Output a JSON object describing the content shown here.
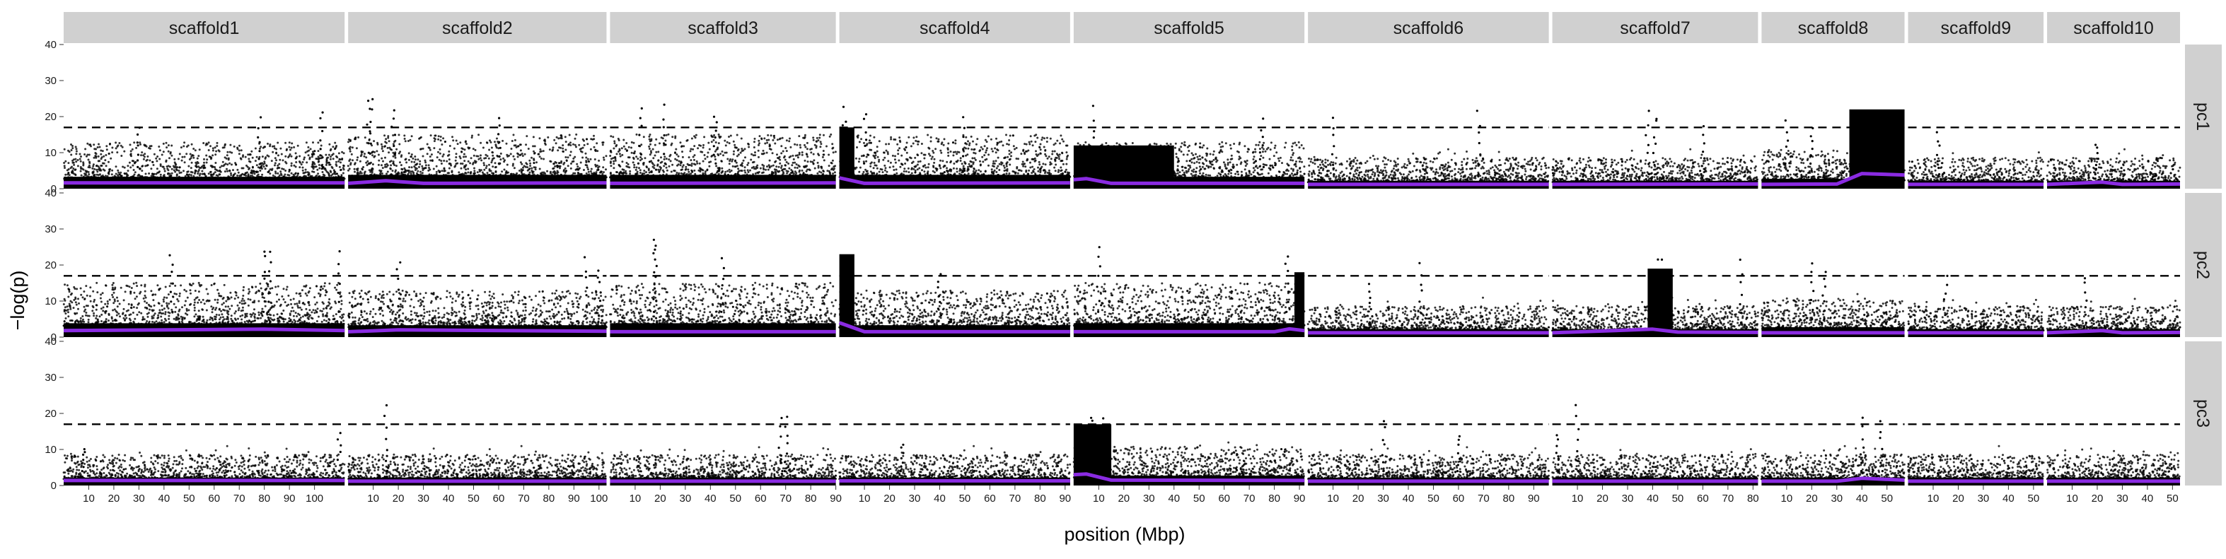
{
  "chart_data": {
    "type": "scatter",
    "subtype": "faceted manhattan plot",
    "xlabel": "position (Mbp)",
    "ylabel": "−log(p)",
    "ylim": [
      0,
      40
    ],
    "y_ticks": [
      0,
      10,
      20,
      30,
      40
    ],
    "grid": false,
    "threshold": 17,
    "threshold_style": "dashed",
    "colors": {
      "points": "#000000",
      "trend": "#8a2be2",
      "strip_bg": "#d0d0d0",
      "threshold": "#000000"
    },
    "columns": [
      {
        "name": "scaffold1",
        "length_mbp": 112,
        "x_ticks": [
          10,
          20,
          30,
          40,
          50,
          60,
          70,
          80,
          90,
          100
        ]
      },
      {
        "name": "scaffold2",
        "length_mbp": 103,
        "x_ticks": [
          10,
          20,
          30,
          40,
          50,
          60,
          70,
          80,
          90,
          100
        ]
      },
      {
        "name": "scaffold3",
        "length_mbp": 90,
        "x_ticks": [
          10,
          20,
          30,
          40,
          50,
          60,
          70,
          80,
          90
        ]
      },
      {
        "name": "scaffold4",
        "length_mbp": 92,
        "x_ticks": [
          10,
          20,
          30,
          40,
          50,
          60,
          70,
          80,
          90
        ]
      },
      {
        "name": "scaffold5",
        "length_mbp": 92,
        "x_ticks": [
          10,
          20,
          30,
          40,
          50,
          60,
          70,
          80,
          90
        ]
      },
      {
        "name": "scaffold6",
        "length_mbp": 96,
        "x_ticks": [
          10,
          20,
          30,
          40,
          50,
          60,
          70,
          80,
          90
        ]
      },
      {
        "name": "scaffold7",
        "length_mbp": 82,
        "x_ticks": [
          10,
          20,
          30,
          40,
          50,
          60,
          70,
          80
        ]
      },
      {
        "name": "scaffold8",
        "length_mbp": 57,
        "x_ticks": [
          10,
          20,
          30,
          40,
          50
        ]
      },
      {
        "name": "scaffold9",
        "length_mbp": 54,
        "x_ticks": [
          10,
          20,
          30,
          40,
          50
        ]
      },
      {
        "name": "scaffold10",
        "length_mbp": 53,
        "x_ticks": [
          10,
          20,
          30,
          40,
          50
        ]
      }
    ],
    "rows": [
      {
        "name": "pc1",
        "panels": [
          {
            "base": 6,
            "trend": [
              [
                0,
                1.6
              ],
              [
                112,
                1.6
              ]
            ],
            "peaks": [
              [
                78,
                20
              ],
              [
                103,
                23
              ],
              [
                30,
                18
              ]
            ],
            "dense": []
          },
          {
            "base": 7,
            "trend": [
              [
                0,
                1.5
              ],
              [
                15,
                2.2
              ],
              [
                30,
                1.5
              ],
              [
                103,
                1.6
              ]
            ],
            "peaks": [
              [
                8,
                26
              ],
              [
                9,
                25
              ],
              [
                18,
                24
              ],
              [
                60,
                20
              ]
            ],
            "dense": []
          },
          {
            "base": 7,
            "trend": [
              [
                0,
                1.5
              ],
              [
                90,
                1.6
              ]
            ],
            "peaks": [
              [
                12,
                23
              ],
              [
                22,
                24
              ],
              [
                42,
                22
              ]
            ],
            "dense": []
          },
          {
            "base": 7,
            "trend": [
              [
                0,
                3.0
              ],
              [
                10,
                1.5
              ],
              [
                92,
                1.6
              ]
            ],
            "peaks": [
              [
                2,
                23
              ],
              [
                10,
                22
              ],
              [
                50,
                20
              ]
            ],
            "dense": [
              [
                0,
                6,
                17
              ]
            ]
          },
          {
            "base": 6,
            "trend": [
              [
                0,
                2.5
              ],
              [
                5,
                2.8
              ],
              [
                15,
                1.5
              ],
              [
                92,
                1.5
              ]
            ],
            "peaks": [
              [
                8,
                23
              ],
              [
                75,
                20
              ]
            ],
            "dense": [
              [
                0,
                40,
                12
              ]
            ]
          },
          {
            "base": 4,
            "trend": [
              [
                0,
                1.2
              ],
              [
                96,
                1.2
              ]
            ],
            "peaks": [
              [
                10,
                21
              ],
              [
                68,
                22
              ]
            ],
            "dense": []
          },
          {
            "base": 4,
            "trend": [
              [
                0,
                1.2
              ],
              [
                82,
                1.3
              ]
            ],
            "peaks": [
              [
                38,
                23
              ],
              [
                41,
                22
              ],
              [
                60,
                18
              ]
            ],
            "dense": []
          },
          {
            "base": 5,
            "trend": [
              [
                0,
                1.2
              ],
              [
                30,
                1.3
              ],
              [
                40,
                4.2
              ],
              [
                57,
                3.8
              ]
            ],
            "peaks": [
              [
                10,
                19
              ],
              [
                20,
                18
              ]
            ],
            "dense": [
              [
                35,
                57,
                22
              ]
            ]
          },
          {
            "base": 4,
            "trend": [
              [
                0,
                1.2
              ],
              [
                54,
                1.2
              ]
            ],
            "peaks": [
              [
                12,
                16
              ]
            ],
            "dense": []
          },
          {
            "base": 4,
            "trend": [
              [
                0,
                1.2
              ],
              [
                22,
                1.8
              ],
              [
                30,
                1.2
              ],
              [
                53,
                1.3
              ]
            ],
            "peaks": [
              [
                20,
                13
              ]
            ],
            "dense": []
          }
        ]
      },
      {
        "name": "pc2",
        "panels": [
          {
            "base": 7,
            "trend": [
              [
                0,
                1.8
              ],
              [
                80,
                2.2
              ],
              [
                112,
                1.8
              ]
            ],
            "peaks": [
              [
                43,
                25
              ],
              [
                80,
                26
              ],
              [
                82,
                24
              ],
              [
                110,
                24
              ]
            ],
            "dense": []
          },
          {
            "base": 6,
            "trend": [
              [
                0,
                1.5
              ],
              [
                20,
                2.0
              ],
              [
                103,
                1.6
              ]
            ],
            "peaks": [
              [
                20,
                22
              ],
              [
                95,
                23
              ],
              [
                100,
                20
              ]
            ],
            "dense": []
          },
          {
            "base": 7,
            "trend": [
              [
                0,
                1.5
              ],
              [
                90,
                1.5
              ]
            ],
            "peaks": [
              [
                18,
                30
              ],
              [
                18,
                27
              ],
              [
                45,
                22
              ]
            ],
            "dense": []
          },
          {
            "base": 6,
            "trend": [
              [
                0,
                4.0
              ],
              [
                10,
                1.5
              ],
              [
                92,
                1.5
              ]
            ],
            "peaks": [
              [
                3,
                23
              ],
              [
                40,
                18
              ]
            ],
            "dense": [
              [
                0,
                6,
                23
              ]
            ]
          },
          {
            "base": 7,
            "trend": [
              [
                0,
                1.5
              ],
              [
                80,
                1.5
              ],
              [
                86,
                2.3
              ],
              [
                92,
                1.8
              ]
            ],
            "peaks": [
              [
                10,
                28
              ],
              [
                85,
                25
              ]
            ],
            "dense": [
              [
                88,
                92,
                18
              ]
            ]
          },
          {
            "base": 4,
            "trend": [
              [
                0,
                1.2
              ],
              [
                96,
                1.2
              ]
            ],
            "peaks": [
              [
                45,
                22
              ],
              [
                25,
                16
              ]
            ],
            "dense": []
          },
          {
            "base": 4,
            "trend": [
              [
                0,
                1.2
              ],
              [
                40,
                2.2
              ],
              [
                50,
                1.4
              ],
              [
                82,
                1.3
              ]
            ],
            "peaks": [
              [
                42,
                23
              ],
              [
                44,
                22
              ],
              [
                75,
                22
              ]
            ],
            "dense": [
              [
                38,
                48,
                19
              ]
            ]
          },
          {
            "base": 5,
            "trend": [
              [
                0,
                1.2
              ],
              [
                57,
                1.2
              ]
            ],
            "peaks": [
              [
                20,
                22
              ],
              [
                25,
                20
              ]
            ],
            "dense": []
          },
          {
            "base": 4,
            "trend": [
              [
                0,
                1.2
              ],
              [
                54,
                1.2
              ]
            ],
            "peaks": [
              [
                15,
                17
              ]
            ],
            "dense": []
          },
          {
            "base": 4,
            "trend": [
              [
                0,
                1.2
              ],
              [
                22,
                1.8
              ],
              [
                30,
                1.2
              ],
              [
                53,
                1.3
              ]
            ],
            "peaks": [
              [
                15,
                18
              ]
            ],
            "dense": []
          }
        ]
      },
      {
        "name": "pc3",
        "panels": [
          {
            "base": 4,
            "trend": [
              [
                0,
                1.4
              ],
              [
                112,
                1.4
              ]
            ],
            "peaks": [
              [
                8,
                11
              ],
              [
                110,
                15
              ]
            ],
            "dense": []
          },
          {
            "base": 4,
            "trend": [
              [
                0,
                1.2
              ],
              [
                103,
                1.2
              ]
            ],
            "peaks": [
              [
                15,
                23
              ]
            ],
            "dense": []
          },
          {
            "base": 4,
            "trend": [
              [
                0,
                1.2
              ],
              [
                90,
                1.2
              ]
            ],
            "peaks": [
              [
                70,
                21
              ],
              [
                68,
                19
              ]
            ],
            "dense": []
          },
          {
            "base": 4,
            "trend": [
              [
                0,
                1.3
              ],
              [
                92,
                1.3
              ]
            ],
            "peaks": [
              [
                25,
                12
              ]
            ],
            "dense": []
          },
          {
            "base": 5,
            "trend": [
              [
                0,
                3.0
              ],
              [
                5,
                3.2
              ],
              [
                15,
                1.5
              ],
              [
                92,
                1.4
              ]
            ],
            "peaks": [
              [
                7,
                21
              ],
              [
                12,
                20
              ]
            ],
            "dense": [
              [
                0,
                15,
                17
              ]
            ]
          },
          {
            "base": 4,
            "trend": [
              [
                0,
                1.2
              ],
              [
                96,
                1.2
              ]
            ],
            "peaks": [
              [
                30,
                19
              ],
              [
                60,
                15
              ]
            ],
            "dense": []
          },
          {
            "base": 4,
            "trend": [
              [
                0,
                1.2
              ],
              [
                82,
                1.2
              ]
            ],
            "peaks": [
              [
                10,
                23
              ],
              [
                2,
                15
              ]
            ],
            "dense": []
          },
          {
            "base": 4,
            "trend": [
              [
                0,
                1.2
              ],
              [
                30,
                1.2
              ],
              [
                40,
                2.0
              ],
              [
                57,
                1.5
              ]
            ],
            "peaks": [
              [
                40,
                19
              ],
              [
                48,
                18
              ]
            ],
            "dense": []
          },
          {
            "base": 4,
            "trend": [
              [
                0,
                1.2
              ],
              [
                54,
                1.2
              ]
            ],
            "peaks": [],
            "dense": []
          },
          {
            "base": 4,
            "trend": [
              [
                0,
                1.2
              ],
              [
                53,
                1.2
              ]
            ],
            "peaks": [],
            "dense": []
          }
        ]
      }
    ]
  }
}
